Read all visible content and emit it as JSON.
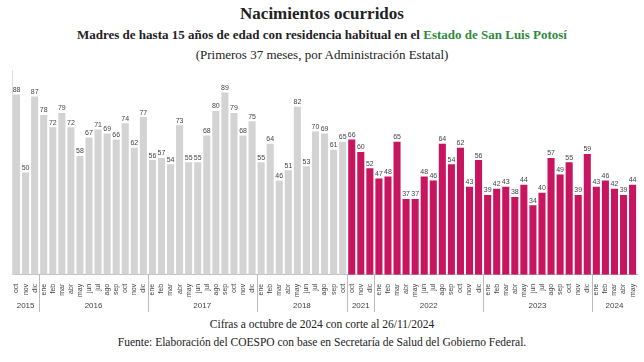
{
  "chart_data": {
    "type": "bar",
    "title": "Nacimientos ocurridos",
    "subtitle": "Madres de hasta 15 años de edad con residencia habitual en el",
    "subtitle_highlight": "Estado de San Luis Potosí",
    "subtitle_2": "(Primeros 37 meses, por Administración Estatal)",
    "notes": [
      "Cifras a octubre de 2024 con corte al 26/11/2024",
      "Fuente: Elaboración del COESPO con base en Secretaría de Salud del Gobierno Federal."
    ],
    "categories": [
      "oct",
      "nov",
      "dic",
      "ene",
      "feb",
      "mar",
      "abr",
      "may",
      "jun",
      "jul",
      "ago",
      "sep",
      "oct",
      "nov",
      "dic",
      "ene",
      "feb",
      "mar",
      "abr",
      "may",
      "jun",
      "jul",
      "ago",
      "sep",
      "oct",
      "nov",
      "dic",
      "ene",
      "feb",
      "mar",
      "abr",
      "may",
      "jun",
      "jul",
      "ago",
      "sep",
      "oct",
      "oct",
      "nov",
      "dic",
      "ene",
      "feb",
      "mar",
      "abr",
      "may",
      "jun",
      "jul",
      "ago",
      "sep",
      "oct",
      "nov",
      "dic",
      "ene",
      "feb",
      "mar",
      "abr",
      "may",
      "jun",
      "jul",
      "ago",
      "sep",
      "oct",
      "nov",
      "dic",
      "ene",
      "feb",
      "mar",
      "abr",
      "may"
    ],
    "category_years": [
      "2015",
      "2015",
      "2015",
      "2016",
      "2016",
      "2016",
      "2016",
      "2016",
      "2016",
      "2016",
      "2016",
      "2016",
      "2016",
      "2016",
      "2016",
      "2017",
      "2017",
      "2017",
      "2017",
      "2017",
      "2017",
      "2017",
      "2017",
      "2017",
      "2017",
      "2017",
      "2017",
      "2018",
      "2018",
      "2018",
      "2018",
      "2018",
      "2018",
      "2018",
      "2018",
      "2018",
      "2018",
      "2021",
      "2021",
      "2021",
      "2022",
      "2022",
      "2022",
      "2022",
      "2022",
      "2022",
      "2022",
      "2022",
      "2022",
      "2022",
      "2022",
      "2022",
      "2023",
      "2023",
      "2023",
      "2023",
      "2023",
      "2023",
      "2023",
      "2023",
      "2023",
      "2023",
      "2023",
      "2023",
      "2024",
      "2024",
      "2024",
      "2024",
      "2024"
    ],
    "values": [
      88,
      50,
      87,
      78,
      72,
      79,
      72,
      58,
      67,
      71,
      69,
      66,
      74,
      62,
      77,
      56,
      57,
      54,
      73,
      55,
      55,
      68,
      80,
      89,
      79,
      68,
      75,
      55,
      64,
      46,
      51,
      82,
      53,
      70,
      69,
      61,
      65,
      66,
      60,
      52,
      47,
      48,
      65,
      37,
      37,
      48,
      46,
      64,
      54,
      62,
      43,
      56,
      39,
      42,
      43,
      38,
      44,
      34,
      40,
      57,
      49,
      55,
      39,
      59,
      43,
      46,
      42,
      39,
      44
    ],
    "colors": [
      "#d3d3d3",
      "#d3d3d3",
      "#d3d3d3",
      "#d3d3d3",
      "#d3d3d3",
      "#d3d3d3",
      "#d3d3d3",
      "#d3d3d3",
      "#d3d3d3",
      "#d3d3d3",
      "#d3d3d3",
      "#d3d3d3",
      "#d3d3d3",
      "#d3d3d3",
      "#d3d3d3",
      "#d3d3d3",
      "#d3d3d3",
      "#d3d3d3",
      "#d3d3d3",
      "#d3d3d3",
      "#d3d3d3",
      "#d3d3d3",
      "#d3d3d3",
      "#d3d3d3",
      "#d3d3d3",
      "#d3d3d3",
      "#d3d3d3",
      "#d3d3d3",
      "#d3d3d3",
      "#d3d3d3",
      "#d3d3d3",
      "#d3d3d3",
      "#d3d3d3",
      "#d3d3d3",
      "#d3d3d3",
      "#d3d3d3",
      "#d3d3d3",
      "#c8155f",
      "#c8155f",
      "#c8155f",
      "#c8155f",
      "#c8155f",
      "#c8155f",
      "#c8155f",
      "#c8155f",
      "#c8155f",
      "#c8155f",
      "#c8155f",
      "#c8155f",
      "#c8155f",
      "#c8155f",
      "#c8155f",
      "#c8155f",
      "#c8155f",
      "#c8155f",
      "#c8155f",
      "#c8155f",
      "#c8155f",
      "#c8155f",
      "#c8155f",
      "#c8155f",
      "#c8155f",
      "#c8155f",
      "#c8155f",
      "#c8155f",
      "#c8155f",
      "#c8155f",
      "#c8155f",
      "#c8155f"
    ],
    "ylim": [
      0,
      100
    ],
    "grid": false,
    "data_labels": true,
    "tick_labels": "x"
  }
}
